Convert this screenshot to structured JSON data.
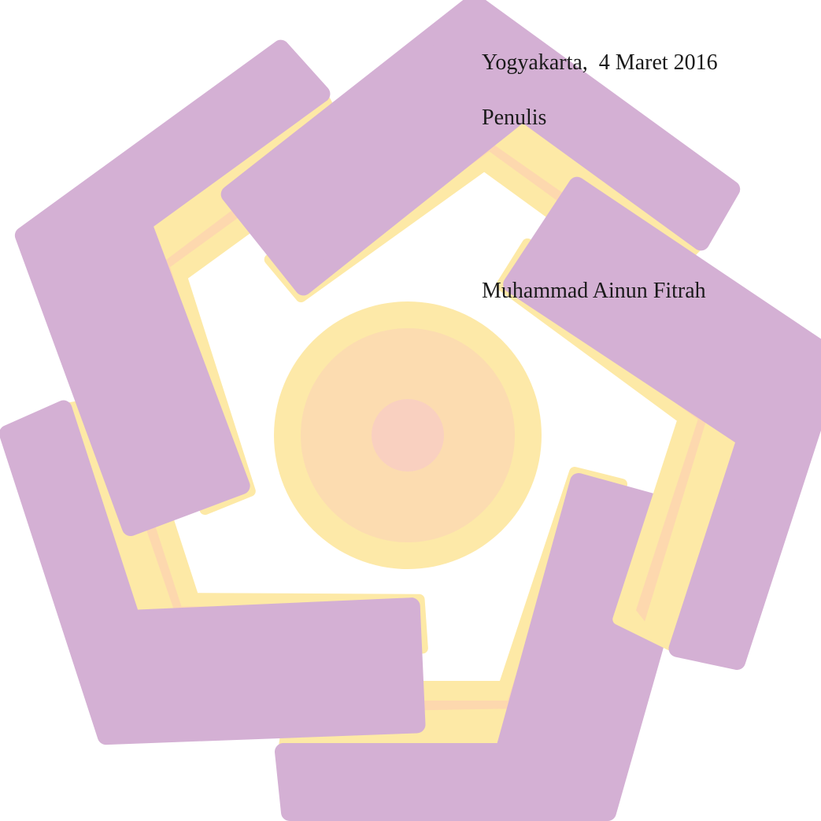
{
  "signature": {
    "place_date": "Yogyakarta,  4 Maret 2016",
    "role": "Penulis",
    "name": "Muhammad Ainun Fitrah"
  }
}
